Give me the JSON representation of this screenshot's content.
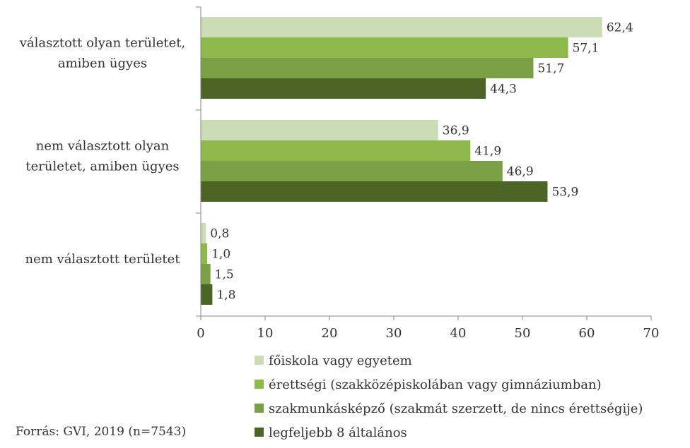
{
  "chart_data": {
    "type": "bar",
    "orientation": "horizontal",
    "categories": [
      [
        "választott olyan területet,",
        "amiben ügyes"
      ],
      [
        "nem választott olyan",
        "területet, amiben ügyes"
      ],
      [
        "nem választott területet"
      ]
    ],
    "series": [
      {
        "name": "főiskola vagy egyetem",
        "color": "#ccdcb6",
        "values": [
          62.4,
          36.9,
          0.8
        ],
        "labels": [
          "62,4",
          "36,9",
          "0,8"
        ]
      },
      {
        "name": "érettségi (szakközépiskolában vagy gimnáziumban)",
        "color": "#8db84a",
        "values": [
          57.1,
          41.9,
          1.0
        ],
        "labels": [
          "57,1",
          "41,9",
          "1,0"
        ]
      },
      {
        "name": "szakmunkásképző (szakmát szerzett, de nincs érettségije)",
        "color": "#79a044",
        "values": [
          51.7,
          46.9,
          1.5
        ],
        "labels": [
          "51,7",
          "46,9",
          "1,5"
        ]
      },
      {
        "name": "legfeljebb 8 általános",
        "color": "#4b6527",
        "values": [
          44.3,
          53.9,
          1.8
        ],
        "labels": [
          "44,3",
          "53,9",
          "1,8"
        ]
      }
    ],
    "xlim": [
      0,
      70
    ],
    "xticks": [
      "0",
      "10",
      "20",
      "30",
      "40",
      "50",
      "60",
      "70"
    ],
    "legend_position": "bottom",
    "grid": false
  },
  "source": "Forrás: GVI, 2019 (n=7543)"
}
